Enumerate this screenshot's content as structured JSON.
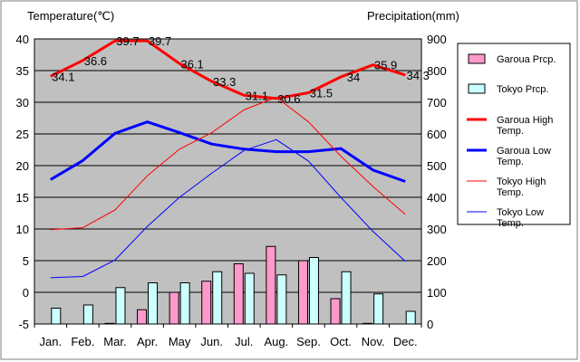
{
  "chart_data": {
    "type": "bar+line",
    "categories": [
      "Jan.",
      "Feb.",
      "Mar.",
      "Apr.",
      "May",
      "Jun.",
      "Jul.",
      "Aug.",
      "Sep.",
      "Oct.",
      "Nov.",
      "Dec."
    ],
    "y_left": {
      "label": "Temperature(℃)",
      "ylim": [
        -5,
        40
      ],
      "ticks": [
        -5,
        0,
        5,
        10,
        15,
        20,
        25,
        30,
        35,
        40
      ]
    },
    "y_right": {
      "label": "Precipitation(mm)",
      "ylim": [
        0,
        900
      ],
      "ticks": [
        0,
        100,
        200,
        300,
        400,
        500,
        600,
        700,
        800,
        900
      ]
    },
    "grid": true,
    "plot_background": "#c0c0c0",
    "legend_position": "right",
    "bar_series": [
      {
        "name": "Garoua Prcp.",
        "axis": "right",
        "color": "#ff99cc",
        "values": [
          0,
          0,
          2,
          45,
          100,
          135,
          190,
          245,
          200,
          80,
          2,
          0
        ]
      },
      {
        "name": "Tokyo Prcp.",
        "axis": "right",
        "color": "#ccffff",
        "values": [
          50,
          60,
          115,
          130,
          130,
          165,
          160,
          155,
          210,
          165,
          95,
          40
        ]
      }
    ],
    "line_series": [
      {
        "name": "Garoua High Temp.",
        "axis": "left",
        "color": "#ff0000",
        "width": 3,
        "values": [
          34.1,
          36.6,
          39.7,
          39.7,
          36.1,
          33.3,
          31.1,
          30.6,
          31.5,
          34,
          35.9,
          34.3
        ],
        "data_labels": [
          "34.1",
          "36.6",
          "39.7",
          "39.7",
          "36.1",
          "33.3",
          "31.1",
          "30.6",
          "31.5",
          "34",
          "35.9",
          "34.3"
        ]
      },
      {
        "name": "Garoua Low Temp.",
        "axis": "left",
        "color": "#0000ff",
        "width": 3,
        "values": [
          17.8,
          20.8,
          25.1,
          26.9,
          25.2,
          23.4,
          22.6,
          22.2,
          22.2,
          22.7,
          19.3,
          17.5
        ]
      },
      {
        "name": "Tokyo High Temp.",
        "axis": "left",
        "color": "#ff0000",
        "width": 1,
        "values": [
          9.9,
          10.2,
          13,
          18.4,
          22.6,
          25.2,
          28.8,
          30.8,
          26.9,
          21.5,
          16.7,
          12.3
        ]
      },
      {
        "name": "Tokyo Low Temp.",
        "axis": "left",
        "color": "#0000ff",
        "width": 1,
        "values": [
          2.3,
          2.5,
          5.1,
          10.4,
          15,
          18.8,
          22.4,
          24.1,
          20.7,
          15,
          9.6,
          4.9
        ]
      }
    ],
    "legend": [
      {
        "label": "Garoua Prcp.",
        "kind": "bar",
        "color": "#ff99cc"
      },
      {
        "label": "Tokyo Prcp.",
        "kind": "bar",
        "color": "#ccffff"
      },
      {
        "label": "Garoua High Temp.",
        "kind": "line",
        "color": "#ff0000",
        "width": 3
      },
      {
        "label": "Garoua Low Temp.",
        "kind": "line",
        "color": "#0000ff",
        "width": 3
      },
      {
        "label": "Tokyo High Temp.",
        "kind": "line",
        "color": "#ff0000",
        "width": 1
      },
      {
        "label": "Tokyo Low Temp.",
        "kind": "line",
        "color": "#0000ff",
        "width": 1
      }
    ]
  }
}
